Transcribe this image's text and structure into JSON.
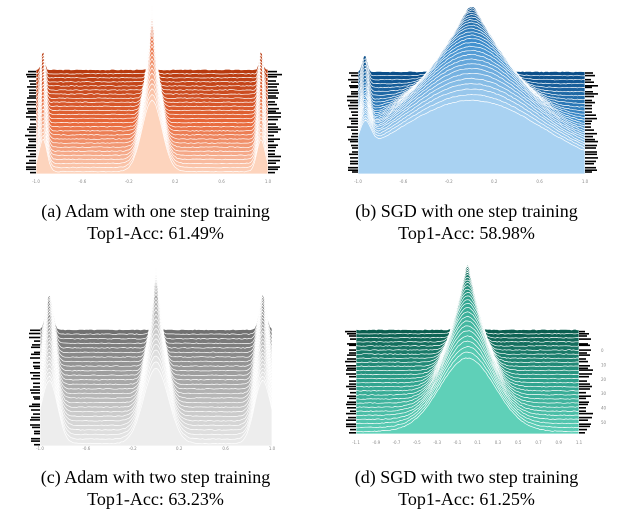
{
  "figure": {
    "panels": [
      {
        "id": "a",
        "caption": "(a) Adam with one step training",
        "accuracy": "Top1-Acc: 61.49%",
        "colors": {
          "dark": "#b83a0f",
          "mid": "#e8683a",
          "light": "#fdd4bd"
        },
        "peaks": [
          {
            "pos": 0.5,
            "height": 0.95,
            "width": 0.012
          },
          {
            "pos": 0.03,
            "height": 0.3,
            "width": 0.01
          },
          {
            "pos": 0.97,
            "height": 0.3,
            "width": 0.01
          }
        ],
        "ticks": [
          "-1.0",
          "-0.6",
          "-0.2",
          "0.2",
          "0.6",
          "1.0"
        ]
      },
      {
        "id": "b",
        "caption": "(b) SGD with one step training",
        "accuracy": "Top1-Acc: 58.98%",
        "colors": {
          "dark": "#0b4f8a",
          "mid": "#3f8fce",
          "light": "#a9d2f2"
        },
        "peaks": [
          {
            "pos": 0.5,
            "height": 0.95,
            "width": 0.09
          },
          {
            "pos": 0.03,
            "height": 0.25,
            "width": 0.015
          }
        ],
        "ticks": [
          "-1.0",
          "-0.6",
          "-0.2",
          "0.2",
          "0.6",
          "1.0"
        ]
      },
      {
        "id": "c",
        "caption": "(c) Adam with two step training",
        "accuracy": "Top1-Acc: 63.23%",
        "colors": {
          "dark": "#707070",
          "mid": "#b0b0b0",
          "light": "#ededed"
        },
        "peaks": [
          {
            "pos": 0.5,
            "height": 0.95,
            "width": 0.015
          },
          {
            "pos": 0.04,
            "height": 0.55,
            "width": 0.02
          },
          {
            "pos": 0.96,
            "height": 0.55,
            "width": 0.02
          }
        ],
        "ticks": [
          "-1.0",
          "-0.6",
          "-0.2",
          "0.2",
          "0.6",
          "1.0"
        ]
      },
      {
        "id": "d",
        "caption": "(d) SGD with two step training",
        "accuracy": "Top1-Acc: 61.25%",
        "colors": {
          "dark": "#0b5e4f",
          "mid": "#2fa38e",
          "light": "#5fd0b8"
        },
        "peaks": [
          {
            "pos": 0.5,
            "height": 0.98,
            "width": 0.035
          }
        ],
        "ticks": [
          "-1.1",
          "-0.9",
          "-0.7",
          "-0.5",
          "-0.3",
          "-0.1",
          "0.1",
          "0.3",
          "0.5",
          "0.7",
          "0.9",
          "1.1"
        ],
        "right_ticks": [
          "0",
          "10",
          "20",
          "30",
          "40",
          "50"
        ]
      }
    ]
  }
}
